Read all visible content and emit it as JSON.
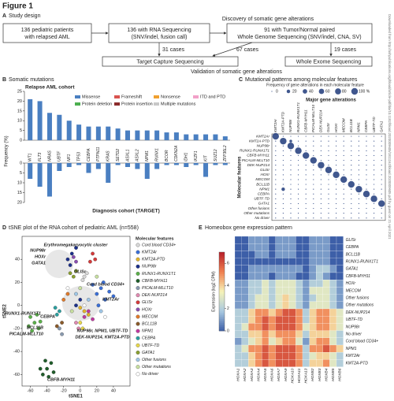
{
  "figure_title": "Figure 1",
  "watermark": "Downloaded from http://ashpublications.org/blood/article-pdf/doi/10.1182/blood.2020009605/1811162/blood.2020009605.pdf by guest on 21 April 2021",
  "panel_a": {
    "label": "A",
    "title": "Study design",
    "box1": [
      "136 pediatric patients",
      "with relapsed AML"
    ],
    "box2": [
      "136 with RNA Sequencing",
      "(SNV/indel, fusion call)"
    ],
    "box3": [
      "91 with Tumor/Normal paired",
      "Whole Genome Sequencing (SNV/indel, CNA, SV)"
    ],
    "discovery": "Discovery of somatic gene alterations",
    "cases": [
      "31 cases",
      "67 cases",
      "19 cases"
    ],
    "target": "Target Capture Sequencing",
    "wes": "Whole Exome Sequencing",
    "validation": "Validation of somatic gene alterations"
  },
  "panel_b": {
    "label": "B",
    "title": "Somatic mutations",
    "relapse_title": "Relapse AML cohort",
    "diagnosis_title": "Diagnosis cohort (TARGET)",
    "y_label": "Frequency (%)",
    "legend": [
      {
        "name": "Missense",
        "color": "#4a7fc1"
      },
      {
        "name": "Frameshift",
        "color": "#d9534f"
      },
      {
        "name": "Nonsense",
        "color": "#f0a030"
      },
      {
        "name": "ITD and PTD",
        "color": "#f2a0c8"
      },
      {
        "name": "Protein deletion",
        "color": "#4caf50"
      },
      {
        "name": "Protein insertion",
        "color": "#8b2c2c"
      },
      {
        "name": "Multiple mutations",
        "color": "#c8c8c8"
      }
    ],
    "genes": [
      "WT1",
      "FLT3",
      "NRAS",
      "UBTF",
      "NF1",
      "TP53",
      "CEBPA",
      "PTPN11",
      "KRAS",
      "SETD2",
      "ASXL1",
      "ASXL2",
      "NPM1",
      "RUNX1",
      "BCOR",
      "CDKN2A",
      "IDH1",
      "IKZF1",
      "KIT",
      "SUZ12",
      "ZFP36L2"
    ],
    "relapse": {
      "values": [
        21,
        20,
        14,
        13,
        10,
        8,
        7,
        7,
        7,
        6,
        5,
        5,
        5,
        5,
        4,
        4,
        3,
        3,
        3,
        3,
        2
      ],
      "ylim": [
        0,
        25
      ],
      "yticks": [
        0,
        5,
        10,
        15,
        20,
        25
      ]
    },
    "diagnosis": {
      "values": [
        8,
        12,
        17,
        4,
        2,
        1,
        5,
        3,
        10,
        1,
        2,
        3,
        8,
        3,
        1,
        1,
        2,
        1,
        7,
        1,
        1
      ],
      "ylim": [
        0,
        20
      ],
      "yticks": [
        0,
        5,
        10,
        15,
        20
      ]
    }
  },
  "panel_c": {
    "label": "C",
    "title": "Mutational patterns among molecular features",
    "legend_title": "Frequency of gene alterations in each molecular feature",
    "legend_ticks": [
      0,
      20,
      40,
      60,
      80,
      {
        "value": 100,
        "label": "100 %"
      }
    ],
    "col_title": "Major gene alterations",
    "row_title": "Molecular features",
    "columns": [
      "KMT2Ar",
      "KMT2A-PTD",
      "NUP98r",
      "RUNX1-RUNX1T1",
      "CBFB-MYH11",
      "PICALM-MLLT10",
      "DEK-NUP214",
      "GLISr",
      "HOXr",
      "MECOM",
      "BCL11B",
      "NPM1",
      "CEBPA",
      "UBTF-TD",
      "GATA1"
    ],
    "rows": [
      "KMT2Ar",
      "KMT2A-PTD",
      "NUP98r",
      "RUNX1-RUNX1T1",
      "CBFB-MYH11",
      "PICALM-MLLT10",
      "DEK-NUP214",
      "GLISr",
      "HOXr",
      "MECOM",
      "BCL11B",
      "NPM1",
      "CEBPA",
      "UBTF-TD",
      "GATA1",
      "Other fusions",
      "Other mutations",
      "No driver"
    ],
    "values": [
      [
        100,
        0,
        0,
        0,
        0,
        0,
        0,
        0,
        0,
        0,
        0,
        0,
        0,
        0,
        0
      ],
      [
        0,
        100,
        10,
        0,
        0,
        0,
        0,
        0,
        0,
        0,
        0,
        0,
        0,
        0,
        0
      ],
      [
        0,
        0,
        100,
        0,
        0,
        0,
        0,
        0,
        0,
        0,
        0,
        0,
        0,
        0,
        0
      ],
      [
        0,
        0,
        0,
        100,
        0,
        0,
        0,
        0,
        0,
        0,
        0,
        0,
        0,
        0,
        0
      ],
      [
        0,
        0,
        0,
        0,
        100,
        0,
        0,
        0,
        0,
        0,
        0,
        0,
        0,
        0,
        0
      ],
      [
        0,
        0,
        0,
        0,
        0,
        100,
        0,
        0,
        0,
        0,
        0,
        0,
        0,
        0,
        0
      ],
      [
        0,
        0,
        0,
        0,
        0,
        0,
        100,
        0,
        0,
        0,
        0,
        0,
        0,
        0,
        0
      ],
      [
        0,
        0,
        0,
        0,
        0,
        0,
        0,
        100,
        0,
        0,
        0,
        0,
        0,
        0,
        0
      ],
      [
        0,
        0,
        0,
        0,
        0,
        0,
        0,
        0,
        100,
        0,
        0,
        0,
        0,
        0,
        0
      ],
      [
        0,
        0,
        0,
        0,
        0,
        0,
        0,
        0,
        0,
        100,
        0,
        0,
        0,
        0,
        0
      ],
      [
        0,
        0,
        0,
        0,
        0,
        0,
        0,
        0,
        0,
        0,
        100,
        0,
        0,
        0,
        0
      ],
      [
        0,
        20,
        0,
        0,
        0,
        0,
        0,
        0,
        0,
        0,
        0,
        100,
        0,
        0,
        0
      ],
      [
        0,
        0,
        0,
        0,
        0,
        0,
        0,
        0,
        0,
        0,
        0,
        0,
        100,
        0,
        0
      ],
      [
        0,
        0,
        0,
        0,
        0,
        0,
        0,
        0,
        0,
        0,
        0,
        0,
        0,
        100,
        0
      ],
      [
        0,
        0,
        0,
        0,
        0,
        0,
        0,
        0,
        0,
        0,
        0,
        0,
        0,
        0,
        100
      ],
      [
        0,
        0,
        0,
        0,
        0,
        0,
        0,
        0,
        0,
        0,
        0,
        0,
        0,
        0,
        0
      ],
      [
        0,
        0,
        0,
        0,
        0,
        0,
        0,
        0,
        0,
        0,
        0,
        0,
        0,
        0,
        0
      ],
      [
        0,
        0,
        0,
        0,
        0,
        0,
        0,
        0,
        0,
        0,
        0,
        0,
        0,
        0,
        0
      ]
    ],
    "color": "#1f3a7a"
  },
  "panel_d": {
    "label": "D",
    "title": "tSNE plot of the RNA cohort of pediatric AML (n=558)",
    "x_label": "tSNE1",
    "y_label": "tSNE2",
    "legend_title": "Molecular features",
    "xlim": [
      -70,
      60
    ],
    "xticks": [
      -60,
      -40,
      -20,
      0,
      20,
      40
    ],
    "ylim": [
      -70,
      60
    ],
    "yticks": [
      -60,
      -40,
      -20,
      0,
      20,
      40
    ],
    "annotations": [
      "Erythromegakaryocytic cluster",
      "Cord blood CD34+",
      "NUP98r",
      "HOXr",
      "GATA1",
      "GLISr",
      "KMT2Ar",
      "RUNX1-RUNX1T1",
      "CEBPA",
      "BCL11B",
      "PICALM-MLLT10",
      "CBFB-MYH11",
      "NUP98r, NPM1, UBTF-TD",
      "DEK-NUP214, KMT2A-PTD"
    ],
    "series": [
      {
        "name": "Cord blood CD34+",
        "color": "#d8d8d8",
        "x": [
          5,
          8,
          3
        ],
        "y": [
          25,
          28,
          22
        ]
      },
      {
        "name": "KMT2Ar",
        "color": "#3a6fd8",
        "x": [
          20,
          25,
          30,
          35,
          28,
          15,
          22,
          40
        ],
        "y": [
          10,
          15,
          5,
          12,
          20,
          18,
          0,
          8
        ]
      },
      {
        "name": "KMT2A-PTD",
        "color": "#e3b52a",
        "x": [
          5,
          10,
          0
        ],
        "y": [
          -5,
          -8,
          -2
        ]
      },
      {
        "name": "NUP98r",
        "color": "#1b2f8a",
        "x": [
          -15,
          -10,
          -5,
          -12,
          0,
          -5
        ],
        "y": [
          40,
          45,
          50,
          35,
          5,
          0
        ]
      },
      {
        "name": "RUNX1-RUNX1T1",
        "color": "#5bb04a",
        "x": [
          -55,
          -60,
          -50,
          -58,
          -52,
          -62,
          -48
        ],
        "y": [
          -15,
          -10,
          -20,
          -22,
          -8,
          -18,
          -14
        ]
      },
      {
        "name": "CBFB-MYH11",
        "color": "#1f5e2a",
        "x": [
          -40,
          -45,
          -35,
          -42,
          -38,
          -48,
          -32
        ],
        "y": [
          -55,
          -60,
          -50,
          -48,
          -62,
          -55,
          -58
        ]
      },
      {
        "name": "PICALM-MLLT10",
        "color": "#8a9bb0",
        "x": [
          -25,
          -22
        ],
        "y": [
          -20,
          -25
        ]
      },
      {
        "name": "DEK-NUP214",
        "color": "#e08ab0",
        "x": [
          -5,
          -2
        ],
        "y": [
          -15,
          -20
        ]
      },
      {
        "name": "GLISr",
        "color": "#d63a3a",
        "x": [
          15,
          18,
          12
        ],
        "y": [
          45,
          40,
          38
        ]
      },
      {
        "name": "HOXr",
        "color": "#8a4fb0",
        "x": [
          -8,
          -5
        ],
        "y": [
          42,
          38
        ]
      },
      {
        "name": "MECOM",
        "color": "#e07a2a",
        "x": [
          -20,
          -15
        ],
        "y": [
          5,
          10
        ]
      },
      {
        "name": "BCL11B",
        "color": "#8a5a2a",
        "x": [
          -22,
          -28
        ],
        "y": [
          -15,
          -18
        ]
      },
      {
        "name": "NPM1",
        "color": "#c03aa0",
        "x": [
          10,
          15,
          5
        ],
        "y": [
          -5,
          -12,
          -10
        ]
      },
      {
        "name": "CEBPA",
        "color": "#2aa0a0",
        "x": [
          -25,
          -30,
          -28
        ],
        "y": [
          -5,
          -2,
          -8
        ]
      },
      {
        "name": "UBTF-TD",
        "color": "#e8d84a",
        "x": [
          0,
          3
        ],
        "y": [
          -15,
          -20
        ]
      },
      {
        "name": "GATA1",
        "color": "#8aa030",
        "x": [
          -8,
          -12,
          -5
        ],
        "y": [
          25,
          28,
          30
        ]
      },
      {
        "name": "Other fusions",
        "color": "#a0c8e8",
        "x": [
          -5,
          10,
          25
        ],
        "y": [
          10,
          5,
          -5
        ]
      },
      {
        "name": "Other mutations",
        "color": "#c8e0a0",
        "x": [
          -10,
          20,
          0
        ],
        "y": [
          -5,
          25,
          15
        ]
      },
      {
        "name": "No driver",
        "color": "#ffffff",
        "x": [
          5,
          -15,
          30
        ],
        "y": [
          0,
          15,
          -10
        ]
      }
    ]
  },
  "panel_e": {
    "label": "E",
    "title": "Homeobox gene expression pattern",
    "colorbar_label": "Expression (log2 CPM)",
    "clim": [
      0,
      7
    ],
    "cticks": [
      0,
      2,
      4,
      6
    ],
    "columns": [
      "HOXA1",
      "HOXA2",
      "HOXA3",
      "HOXA4",
      "HOXA5",
      "HOXA6",
      "HOXA7",
      "HOXA9",
      "HOXA10",
      "HOXA11",
      "HOXA13",
      "HOXB2",
      "HOXB3",
      "HOXB4",
      "HOXB5",
      "HOXB6"
    ],
    "rows": [
      "GLISr",
      "CEBPA",
      "BCL11B",
      "RUNX1-RUNX1T1",
      "GATA1",
      "CBFB-MYH11",
      "HOXr",
      "MECOM",
      "Other fusions",
      "Other mutations",
      "DEK-NUP214",
      "UBTF-TD",
      "NUP98r",
      "No driver",
      "Cord blood CD34+",
      "NPM1",
      "KMT2Ar",
      "KMT2A-PTD"
    ],
    "values": [
      [
        0,
        0,
        1,
        1,
        1,
        0,
        1,
        1,
        1,
        0,
        0,
        1,
        1,
        1,
        0,
        0
      ],
      [
        0,
        0,
        1,
        1,
        1,
        0,
        1,
        1,
        1,
        0,
        0,
        1,
        1,
        1,
        0,
        0
      ],
      [
        0,
        0,
        0,
        1,
        1,
        0,
        1,
        1,
        1,
        0,
        0,
        1,
        1,
        1,
        0,
        0
      ],
      [
        0,
        0,
        0,
        0,
        0,
        0,
        0,
        0,
        0,
        0,
        0,
        1,
        1,
        1,
        0,
        0
      ],
      [
        0,
        0,
        1,
        1,
        1,
        1,
        1,
        1,
        1,
        1,
        0,
        1,
        2,
        2,
        1,
        0
      ],
      [
        0,
        0,
        1,
        1,
        1,
        0,
        1,
        1,
        1,
        0,
        0,
        1,
        2,
        1,
        0,
        0
      ],
      [
        1,
        1,
        2,
        2,
        3,
        2,
        3,
        3,
        3,
        2,
        1,
        2,
        2,
        3,
        2,
        1
      ],
      [
        1,
        1,
        2,
        2,
        3,
        2,
        3,
        3,
        3,
        2,
        1,
        3,
        3,
        3,
        2,
        1
      ],
      [
        1,
        1,
        2,
        3,
        3,
        2,
        3,
        4,
        3,
        2,
        1,
        2,
        3,
        3,
        2,
        1
      ],
      [
        1,
        1,
        2,
        3,
        3,
        2,
        3,
        4,
        3,
        2,
        1,
        3,
        3,
        3,
        2,
        1
      ],
      [
        2,
        2,
        4,
        5,
        5,
        4,
        5,
        6,
        6,
        5,
        2,
        4,
        5,
        5,
        4,
        3
      ],
      [
        2,
        2,
        4,
        5,
        6,
        5,
        6,
        6,
        6,
        5,
        2,
        4,
        5,
        5,
        4,
        3
      ],
      [
        2,
        3,
        5,
        5,
        6,
        5,
        6,
        6,
        6,
        5,
        3,
        4,
        5,
        5,
        4,
        3
      ],
      [
        2,
        2,
        4,
        4,
        5,
        4,
        5,
        5,
        5,
        4,
        2,
        4,
        4,
        4,
        3,
        2
      ],
      [
        1,
        2,
        3,
        4,
        5,
        3,
        4,
        5,
        5,
        3,
        1,
        4,
        5,
        5,
        3,
        2
      ],
      [
        2,
        3,
        5,
        5,
        6,
        5,
        6,
        6,
        6,
        5,
        2,
        5,
        5,
        6,
        5,
        4
      ],
      [
        2,
        2,
        4,
        5,
        6,
        5,
        6,
        6,
        6,
        5,
        2,
        3,
        4,
        4,
        3,
        2
      ],
      [
        2,
        2,
        4,
        5,
        6,
        5,
        6,
        6,
        6,
        5,
        2,
        4,
        4,
        5,
        3,
        2
      ]
    ],
    "colors": [
      "#3d5fa8",
      "#a8c8e0",
      "#f6f3b8",
      "#f08050",
      "#b8202a"
    ]
  }
}
